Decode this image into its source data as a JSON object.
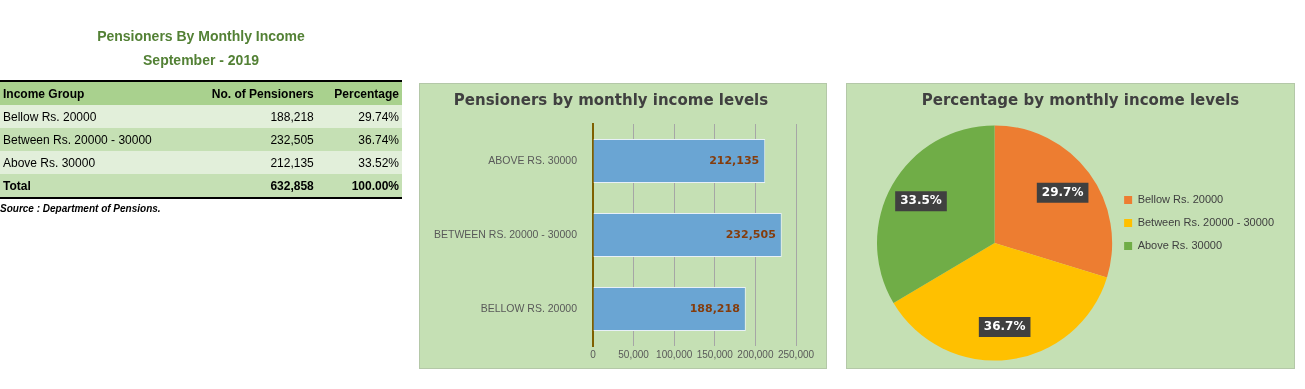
{
  "chart_data": [
    {
      "type": "other",
      "title": "Pensioners By Monthly Income",
      "subtitle": "September - 2019",
      "xlabel": "Income Group",
      "categories": [
        "Bellow Rs. 20000",
        "Between Rs. 20000 - 30000",
        "Above Rs. 30000",
        "Total"
      ],
      "series": [
        {
          "name": "No. of Pensioners",
          "colors": [
            "#e2efda",
            "#c5e0b4",
            "#e2efda",
            "#c5e0b4"
          ],
          "values": [
            188218,
            232505,
            212135,
            632858
          ],
          "value_labels": [
            "188,218",
            "232,505",
            "212,135",
            "632,858"
          ]
        },
        {
          "name": "Percentage",
          "colors": [
            "#e2efda",
            "#c5e0b4",
            "#e2efda",
            "#c5e0b4"
          ],
          "values": [
            29.74,
            36.74,
            33.52,
            100
          ],
          "value_labels": [
            "29.74%",
            "36.74%",
            "33.52%",
            "100.00%"
          ]
        }
      ],
      "annotations": [
        "Source : Department of Pensions."
      ]
    },
    {
      "type": "bar",
      "orientation": "horizontal",
      "title": "Pensioners by monthly income levels",
      "categories": [
        "ABOVE RS. 30000",
        "BETWEEN RS. 20000 - 30000",
        "BELLOW RS. 20000"
      ],
      "values": [
        212135,
        232505,
        188218
      ],
      "color": "#6aa5d3",
      "value_labels": [
        "212,135",
        "232,505",
        "188,218"
      ],
      "xlim": [
        0,
        250000
      ],
      "xticks": [
        0,
        {
          "value": 50000,
          "label": "50,000"
        },
        {
          "value": 100000,
          "label": "100,000"
        },
        {
          "value": 150000,
          "label": "150,000"
        },
        {
          "value": 200000,
          "label": "200,000"
        },
        {
          "value": 250000,
          "label": "250,000"
        }
      ],
      "grid": "x",
      "legend": false
    },
    {
      "type": "pie",
      "title": "Percentage by monthly income levels",
      "categories": [
        "Bellow Rs. 20000",
        "Between Rs. 20000 - 30000",
        "Above Rs. 30000"
      ],
      "values": [
        29.7,
        36.7,
        33.5
      ],
      "colors": [
        "#ed7d31",
        "#ffc000",
        "#70ad47"
      ],
      "value_labels": [
        "29.7%",
        "36.7%",
        "33.5%"
      ],
      "legend": "right"
    }
  ]
}
